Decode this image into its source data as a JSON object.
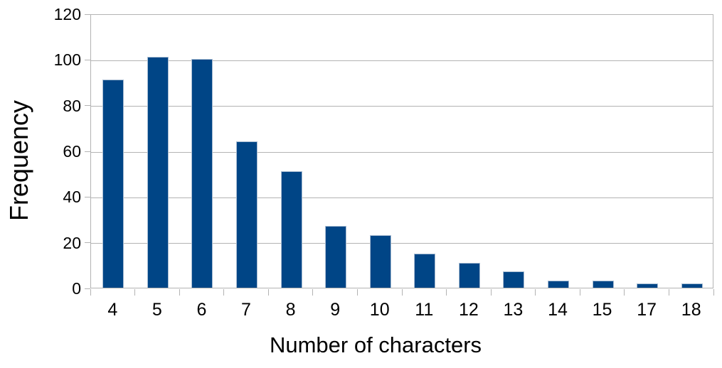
{
  "chart_data": {
    "type": "bar",
    "categories": [
      "4",
      "5",
      "6",
      "7",
      "8",
      "9",
      "10",
      "11",
      "12",
      "13",
      "14",
      "15",
      "17",
      "18"
    ],
    "values": [
      91,
      101,
      100,
      64,
      51,
      27,
      23,
      15,
      11,
      7,
      3,
      3,
      2,
      2
    ],
    "title": "",
    "xlabel": "Number of characters",
    "ylabel": "Frequency",
    "ylim": [
      0,
      120
    ],
    "yticks": [
      0,
      20,
      40,
      60,
      80,
      100,
      120
    ],
    "ytick_labels": [
      "0",
      "20",
      "40",
      "60",
      "80",
      "100",
      "120"
    ],
    "grid": true,
    "legend_position": "none",
    "bar_color": "#004586",
    "axis_color": "#b3b3b3",
    "text_color": "#000000",
    "background_color": "#ffffff"
  }
}
